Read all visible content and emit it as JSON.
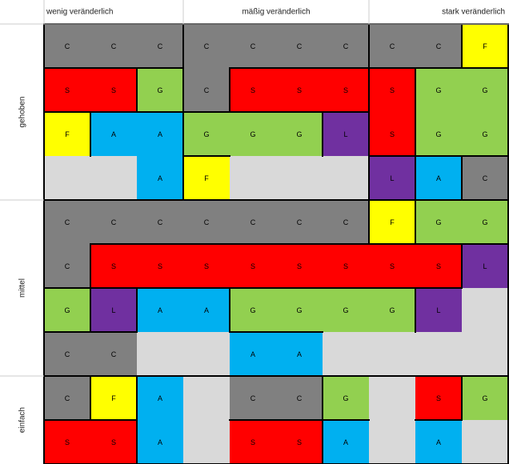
{
  "headers": {
    "columns": [
      "wenig veränderlich",
      "mäßig veränderlich",
      "stark veränderlich"
    ],
    "rows": [
      "gehoben",
      "mittel",
      "einfach"
    ]
  },
  "palette": {
    "C": "#808080",
    "S": "#ff0000",
    "G": "#92d050",
    "F": "#ffff00",
    "A": "#00b0f0",
    "L": "#7030a0"
  },
  "empty_color": "#d9d9d9",
  "grid": {
    "rows": [
      [
        "C",
        "C",
        "C",
        "C",
        "C",
        "C",
        "C",
        "C",
        "C",
        "F"
      ],
      [
        "S",
        "S",
        "G",
        "C",
        "S",
        "S",
        "S",
        "S",
        "G",
        "G"
      ],
      [
        "F",
        "A",
        "A",
        "G",
        "G",
        "G",
        "L",
        "S",
        "G",
        "G"
      ],
      [
        null,
        null,
        "A",
        "F",
        null,
        null,
        null,
        "L",
        "A",
        "C"
      ],
      [
        "C",
        "C",
        "C",
        "C",
        "C",
        "C",
        "C",
        "F",
        "G",
        "G"
      ],
      [
        "C",
        "S",
        "S",
        "S",
        "S",
        "S",
        "S",
        "S",
        "S",
        "L"
      ],
      [
        "G",
        "L",
        "A",
        "A",
        "G",
        "G",
        "G",
        "G",
        "L",
        null
      ],
      [
        "C",
        "C",
        null,
        null,
        "A",
        "A",
        null,
        null,
        null,
        null
      ],
      [
        "C",
        "F",
        "A",
        null,
        "C",
        "C",
        "G",
        null,
        "S",
        "G"
      ],
      [
        "S",
        "S",
        "A",
        null,
        "S",
        "S",
        "A",
        null,
        "A",
        null
      ]
    ]
  }
}
